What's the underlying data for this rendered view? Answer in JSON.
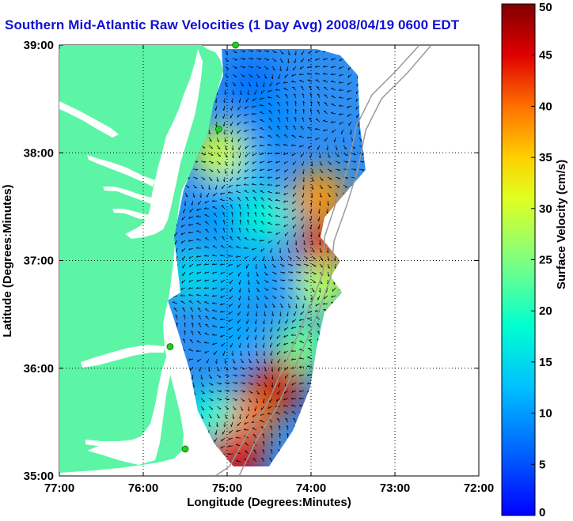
{
  "title": "Southern Mid-Atlantic Raw Velocities (1 Day Avg) 2008/04/19 0600 EDT",
  "xlabel": "Longitude (Degrees:Minutes)",
  "ylabel": "Latitude (Degrees:Minutes)",
  "colorbar_label": "Surface Velocity (cm/s)",
  "x_ticks": [
    "77:00",
    "76:00",
    "75:00",
    "74:00",
    "73:00",
    "72:00"
  ],
  "y_ticks": [
    "39:00",
    "38:00",
    "37:00",
    "36:00",
    "35:00"
  ],
  "colorbar_ticks": [
    "50",
    "45",
    "40",
    "35",
    "30",
    "25",
    "20",
    "15",
    "10",
    "5",
    "0"
  ],
  "colors": {
    "land": "#5cf5a6",
    "title": "#1010d0",
    "station": "#22cc22",
    "bathymetry": "#9a9a9a"
  },
  "chart_data": {
    "type": "heatmap",
    "title": "Southern Mid-Atlantic Raw Velocities (1 Day Avg) 2008/04/19 0600 EDT",
    "xlabel": "Longitude (Degrees:Minutes)",
    "ylabel": "Latitude (Degrees:Minutes)",
    "xlim": [
      -77,
      -72
    ],
    "ylim": [
      35,
      39
    ],
    "grid": true,
    "colorbar": {
      "label": "Surface Velocity (cm/s)",
      "min": 0,
      "max": 50,
      "ticks": [
        0,
        5,
        10,
        15,
        20,
        25,
        30,
        35,
        40,
        45,
        50
      ],
      "colormap": "jet"
    },
    "stations": [
      {
        "lon": -74.9,
        "lat": 39.0
      },
      {
        "lon": -75.1,
        "lat": 38.22
      },
      {
        "lon": -75.68,
        "lat": 36.2
      },
      {
        "lon": -75.5,
        "lat": 35.25
      }
    ],
    "speed_regions": [
      {
        "lon": -74.7,
        "lat": 38.65,
        "speed": 7
      },
      {
        "lon": -74.5,
        "lat": 38.3,
        "speed": 9
      },
      {
        "lon": -74.85,
        "lat": 37.85,
        "speed": 12
      },
      {
        "lon": -75.1,
        "lat": 37.45,
        "speed": 10
      },
      {
        "lon": -74.55,
        "lat": 37.4,
        "speed": 18
      },
      {
        "lon": -73.9,
        "lat": 37.6,
        "speed": 38
      },
      {
        "lon": -73.85,
        "lat": 37.1,
        "speed": 44
      },
      {
        "lon": -74.85,
        "lat": 36.9,
        "speed": 12
      },
      {
        "lon": -74.2,
        "lat": 36.75,
        "speed": 10
      },
      {
        "lon": -73.85,
        "lat": 36.75,
        "speed": 28
      },
      {
        "lon": -74.9,
        "lat": 36.3,
        "speed": 11
      },
      {
        "lon": -74.1,
        "lat": 36.2,
        "speed": 24
      },
      {
        "lon": -74.4,
        "lat": 35.85,
        "speed": 46
      },
      {
        "lon": -74.75,
        "lat": 35.55,
        "speed": 40
      },
      {
        "lon": -75.2,
        "lat": 35.55,
        "speed": 18
      },
      {
        "lon": -74.9,
        "lat": 35.2,
        "speed": 45
      },
      {
        "lon": -75.45,
        "lat": 36.85,
        "speed": 15
      },
      {
        "lon": -75.1,
        "lat": 38.0,
        "speed": 30
      }
    ]
  }
}
